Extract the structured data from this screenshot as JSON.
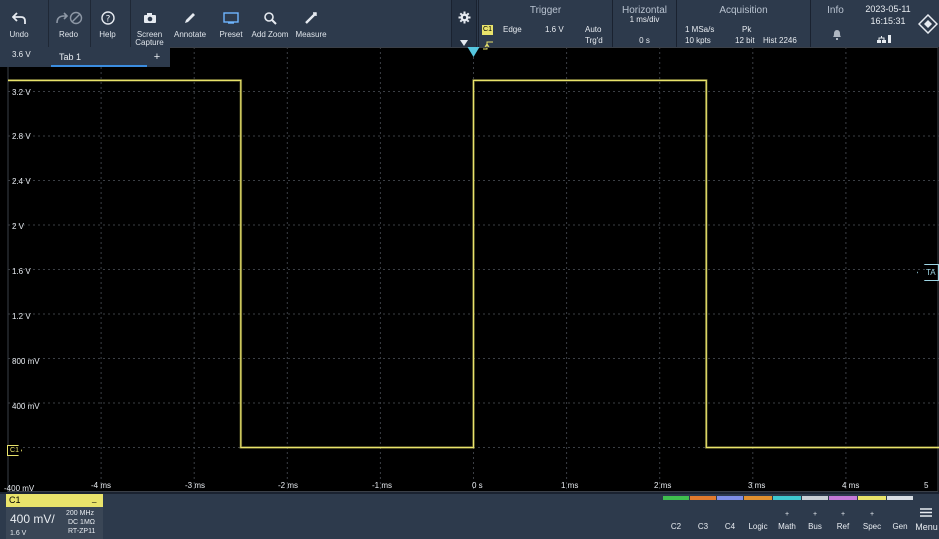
{
  "toolbar": {
    "undo": "Undo",
    "redo": "Redo",
    "help": "Help",
    "screen_capture_1": "Screen",
    "screen_capture_2": "Capture",
    "annotate": "Annotate",
    "preset": "Preset",
    "add_zoom": "Add Zoom",
    "measure": "Measure"
  },
  "trigger": {
    "title": "Trigger",
    "source": "C1",
    "type": "Edge",
    "level": "1.6 V",
    "mode": "Auto",
    "state": "Trg'd"
  },
  "horizontal": {
    "title": "Horizontal",
    "scale": "1 ms/div",
    "position": "0 s"
  },
  "acquisition": {
    "title": "Acquisition",
    "sample_rate": "1 MSa/s",
    "mode": "Pk",
    "record_length": "10 kpts",
    "resolution": "12 bit",
    "hist": "Hist 2246"
  },
  "info": {
    "title": "Info"
  },
  "datetime": {
    "date": "2023-05-11",
    "time": "16:15:31"
  },
  "tabs": [
    {
      "label": "Tab 1"
    }
  ],
  "tab_add": "+",
  "plot": {
    "y_labels": [
      "3.6 V",
      "3.2 V",
      "2.8 V",
      "2.4 V",
      "2 V",
      "1.6 V",
      "1.2 V",
      "800 mV",
      "400 mV",
      "-400 mV"
    ],
    "x_labels": [
      "-4 ms",
      "-3 ms",
      "-2 ms",
      "-1 ms",
      "0 s",
      "1 ms",
      "2 ms",
      "3 ms",
      "4 ms",
      "5 ms"
    ],
    "channel_marker": "C1",
    "trigger_marker": "TA",
    "trace_color": "#e9e36b",
    "trigger_color": "#56c6df"
  },
  "chart_data": {
    "type": "line",
    "series": [
      {
        "name": "C1",
        "x": [
          -5.0,
          -2.5,
          -2.5,
          0.0,
          0.0,
          2.5,
          2.5,
          5.0
        ],
        "y": [
          3.3,
          3.3,
          0.0,
          0.0,
          3.3,
          3.3,
          0.0,
          0.0
        ]
      }
    ],
    "xlim": [
      -5,
      5
    ],
    "ylim": [
      -0.4,
      3.6
    ],
    "x_unit": "ms",
    "grid": true
  },
  "channel1": {
    "name": "C1",
    "scale": "400 mV/",
    "bandwidth": "200 MHz",
    "coupling": "DC 1MΩ",
    "probe": "RT-ZP11",
    "offset": "1.6 V",
    "color": "#e9e36b"
  },
  "bottom_buttons": [
    {
      "label": "C2",
      "color": "#3fbf4f"
    },
    {
      "label": "C3",
      "color": "#e07a2e"
    },
    {
      "label": "C4",
      "color": "#7f8fe6"
    },
    {
      "label": "Logic",
      "color": "#e09030"
    },
    {
      "label": "Math",
      "color": "#3fc8d0"
    },
    {
      "label": "Bus",
      "color": "#c9cfd6"
    },
    {
      "label": "Ref",
      "color": "#c47ad8"
    },
    {
      "label": "Spec",
      "color": "#e9e36b"
    },
    {
      "label": "Gen",
      "color": "#d8dde3"
    }
  ],
  "menu": "Menu"
}
